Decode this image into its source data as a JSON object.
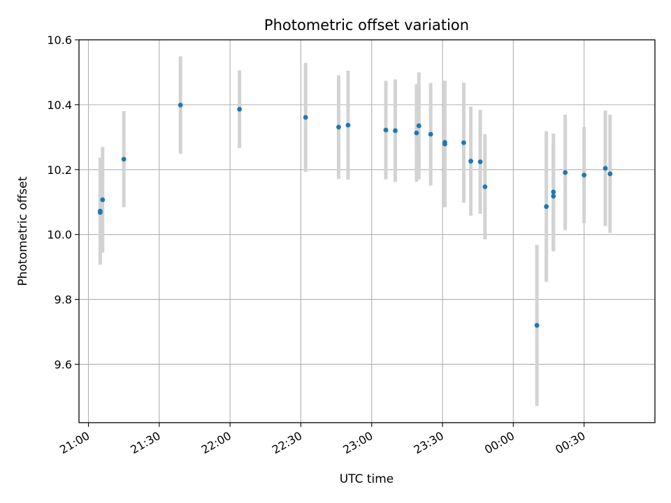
{
  "chart_data": {
    "type": "scatter",
    "title": "Photometric offset variation",
    "xlabel": "UTC time",
    "ylabel": "Photometric offset",
    "x_ticks": [
      "21:00",
      "21:30",
      "22:00",
      "22:30",
      "23:00",
      "23:30",
      "00:00",
      "00:30"
    ],
    "y_ticks": [
      "9.6",
      "9.8",
      "10.0",
      "10.2",
      "10.4",
      "10.6"
    ],
    "xlim": [
      "20:56",
      "01:00"
    ],
    "ylim": [
      9.42,
      10.6
    ],
    "grid": true,
    "colors": {
      "point": "#1f77b4",
      "errorbar": "#d3d3d3",
      "grid": "#b0b0b0"
    },
    "points": [
      {
        "t": "21:05",
        "y": 10.072,
        "err": 0.165
      },
      {
        "t": "21:05",
        "y": 10.068,
        "err": 0.16
      },
      {
        "t": "21:06",
        "y": 10.107,
        "err": 0.163
      },
      {
        "t": "21:15",
        "y": 10.232,
        "err": 0.148
      },
      {
        "t": "21:39",
        "y": 10.399,
        "err": 0.15
      },
      {
        "t": "22:04",
        "y": 10.386,
        "err": 0.12
      },
      {
        "t": "22:32",
        "y": 10.361,
        "err": 0.168
      },
      {
        "t": "22:46",
        "y": 10.331,
        "err": 0.16
      },
      {
        "t": "22:50",
        "y": 10.337,
        "err": 0.168
      },
      {
        "t": "23:06",
        "y": 10.322,
        "err": 0.152
      },
      {
        "t": "23:10",
        "y": 10.32,
        "err": 0.158
      },
      {
        "t": "23:19",
        "y": 10.313,
        "err": 0.15
      },
      {
        "t": "23:20",
        "y": 10.335,
        "err": 0.165
      },
      {
        "t": "23:25",
        "y": 10.309,
        "err": 0.158
      },
      {
        "t": "23:31",
        "y": 10.279,
        "err": 0.195
      },
      {
        "t": "23:31",
        "y": 10.284,
        "err": 0.19
      },
      {
        "t": "23:39",
        "y": 10.283,
        "err": 0.185
      },
      {
        "t": "23:42",
        "y": 10.226,
        "err": 0.168
      },
      {
        "t": "23:46",
        "y": 10.224,
        "err": 0.16
      },
      {
        "t": "23:48",
        "y": 10.147,
        "err": 0.162
      },
      {
        "t": "00:10",
        "y": 9.72,
        "err": 0.248
      },
      {
        "t": "00:14",
        "y": 10.086,
        "err": 0.232
      },
      {
        "t": "00:17",
        "y": 10.131,
        "err": 0.18
      },
      {
        "t": "00:17",
        "y": 10.118,
        "err": 0.17
      },
      {
        "t": "00:22",
        "y": 10.191,
        "err": 0.178
      },
      {
        "t": "00:30",
        "y": 10.183,
        "err": 0.148
      },
      {
        "t": "00:39",
        "y": 10.204,
        "err": 0.178
      },
      {
        "t": "00:41",
        "y": 10.187,
        "err": 0.182
      }
    ]
  }
}
